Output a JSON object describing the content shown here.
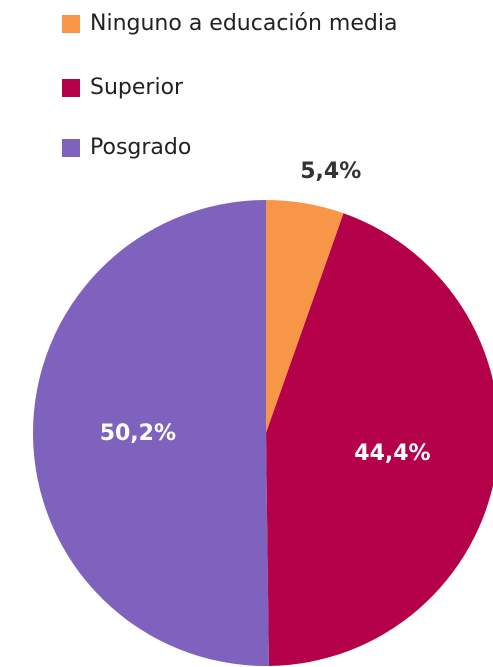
{
  "chart_data": {
    "type": "pie",
    "categories": [
      "Ninguno a educación media",
      "Superior",
      "Posgrado"
    ],
    "values": [
      5.4,
      44.4,
      50.2
    ],
    "value_labels": [
      "5,4%",
      "44,4%",
      "50,2%"
    ],
    "colors": [
      "#f79646",
      "#b5004a",
      "#7f62be"
    ],
    "legend": "top"
  }
}
